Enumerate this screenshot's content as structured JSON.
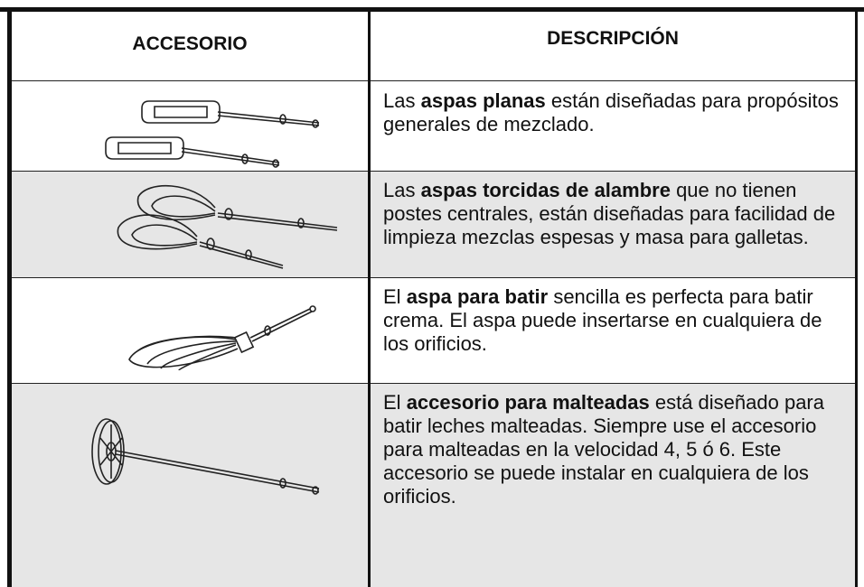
{
  "table": {
    "headers": [
      "ACCESORIO",
      "DESCRIPCIÓN"
    ],
    "rows": [
      {
        "description": [
          {
            "text": "Las ",
            "bold": false
          },
          {
            "text": "aspas planas",
            "bold": true
          },
          {
            "text": " están diseñadas para propósitos generales de mezclado.",
            "bold": false
          }
        ]
      },
      {
        "description": [
          {
            "text": "Las ",
            "bold": false
          },
          {
            "text": "aspas torcidas de alambre",
            "bold": true
          },
          {
            "text": " que no tienen postes centrales, están diseñadas para facilidad de limpieza mezclas espesas y masa para galletas.",
            "bold": false
          }
        ]
      },
      {
        "description": [
          {
            "text": "El ",
            "bold": false
          },
          {
            "text": "aspa para batir",
            "bold": true
          },
          {
            "text": " sencilla es perfecta para batir crema. El aspa puede insertarse en cualquiera de los orificios.",
            "bold": false
          }
        ]
      },
      {
        "description": [
          {
            "text": "El ",
            "bold": false
          },
          {
            "text": "accesorio para malteadas",
            "bold": true
          },
          {
            "text": " está diseña­do para batir leches malteadas. Siempre use el accesorio para malteadas en la velocidad 4, 5 ó 6. Este accesorio se puede instalar en cualquiera de los orificios.",
            "bold": false
          }
        ]
      }
    ]
  }
}
